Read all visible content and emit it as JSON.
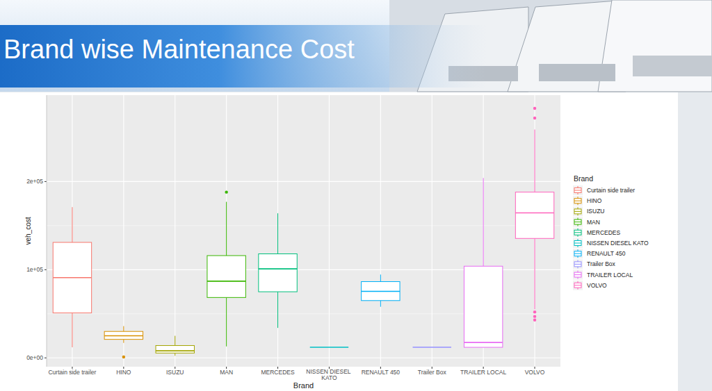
{
  "chart_data": {
    "type": "box",
    "title": "Brand wise Maintenance Cost",
    "x_label": "Brand",
    "y_label": "veh_cost",
    "legend_title": "Brand",
    "legend": "right",
    "grid": true,
    "categories": [
      "Curtain side trailer",
      "HINO",
      "ISUZU",
      "MAN",
      "MERCEDES",
      "NISSEN DIESEL KATO",
      "RENAULT 450",
      "Trailer Box",
      "TRAILER LOCAL",
      "VOLVO"
    ],
    "colors": [
      "#F8766D",
      "#D89000",
      "#A3A500",
      "#39B600",
      "#00BF7D",
      "#00BFC4",
      "#00B0F6",
      "#9590FF",
      "#E76BF3",
      "#FF62BC"
    ],
    "boxes": [
      {
        "min": 12000,
        "q1": 51000,
        "median": 91000,
        "q3": 131000,
        "max": 171000,
        "outliers": []
      },
      {
        "min": 17000,
        "q1": 21000,
        "median": 25000,
        "q3": 30000,
        "max": 36000,
        "outliers": [
          1000
        ]
      },
      {
        "min": 2400,
        "q1": 5500,
        "median": 8000,
        "q3": 14000,
        "max": 25000,
        "outliers": []
      },
      {
        "min": 13000,
        "q1": 68500,
        "median": 87000,
        "q3": 116000,
        "max": 177000,
        "outliers": [
          188000
        ]
      },
      {
        "min": 34000,
        "q1": 75000,
        "median": 101000,
        "q3": 118000,
        "max": 164000,
        "outliers": []
      },
      {
        "min": 12000,
        "q1": 12000,
        "median": 12000,
        "q3": 12000,
        "max": 12000,
        "outliers": []
      },
      {
        "min": 58000,
        "q1": 65000,
        "median": 75500,
        "q3": 86500,
        "max": 94500,
        "outliers": []
      },
      {
        "min": 12000,
        "q1": 12000,
        "median": 12000,
        "q3": 12000,
        "max": 12000,
        "outliers": []
      },
      {
        "min": 12000,
        "q1": 12000,
        "median": 17500,
        "q3": 104000,
        "max": 204000,
        "outliers": []
      },
      {
        "min": 55000,
        "q1": 135500,
        "median": 164500,
        "q3": 188000,
        "max": 259000,
        "outliers": [
          283000,
          272000,
          52000,
          47000,
          43000
        ]
      }
    ],
    "ylim": [
      -10000,
      298000
    ],
    "yticks": [
      {
        "value": 0,
        "label": "0e+00"
      },
      {
        "value": 100000,
        "label": "1e+05"
      },
      {
        "value": 200000,
        "label": "2e+05"
      }
    ]
  }
}
